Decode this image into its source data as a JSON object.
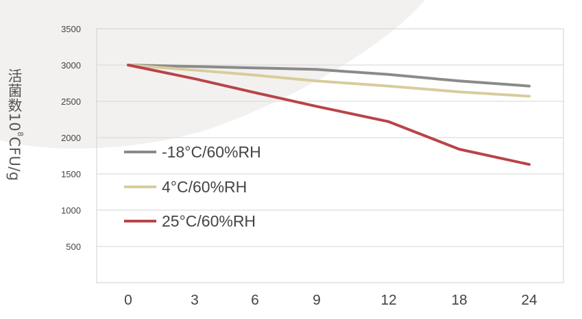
{
  "chart_data": {
    "type": "line",
    "ylabel": {
      "prefix": "活菌数10",
      "sup": "8",
      "suffix": "CFU/g"
    },
    "xlabel": "",
    "x": [
      0,
      3,
      6,
      9,
      12,
      18,
      24
    ],
    "x_tick_labels": [
      "0",
      "3",
      "6",
      "9",
      "12",
      "18",
      "24"
    ],
    "y_ticks": [
      500,
      1000,
      1500,
      2000,
      2500,
      3000,
      3500
    ],
    "ylim": [
      0,
      3500
    ],
    "grid": "horizontal",
    "legend_position": "inside-left",
    "series": [
      {
        "name": "-18°C/60%RH",
        "color": "#8a8a8a",
        "values": [
          3000,
          2980,
          2960,
          2940,
          2870,
          2780,
          2710
        ]
      },
      {
        "name": "4°C/60%RH",
        "color": "#d8cc9c",
        "values": [
          3000,
          2930,
          2860,
          2780,
          2710,
          2630,
          2570
        ]
      },
      {
        "name": "25°C/60%RH",
        "color": "#b84448",
        "values": [
          3000,
          2810,
          2620,
          2430,
          2220,
          1840,
          1630
        ]
      }
    ]
  }
}
